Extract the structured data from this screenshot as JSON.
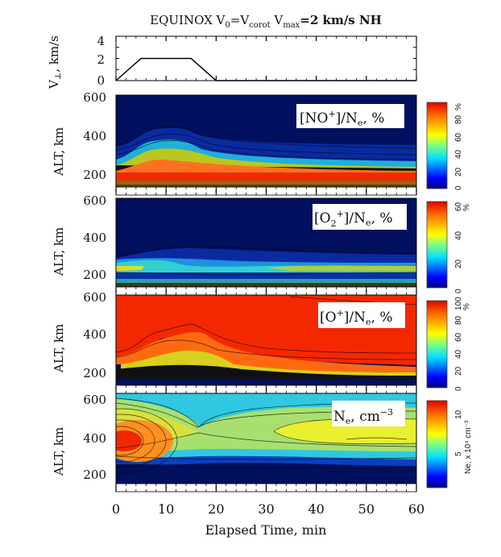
{
  "chart_data": [
    {
      "type": "line",
      "panel": "velocity",
      "title": "EQUINOX V0=Vcorot Vmax=2 km/s NH",
      "title_parts": {
        "main": "EQUINOX V",
        "sub0": "0",
        "eq1": "=V",
        "sub_corot": "corot",
        "v": " V",
        "sub_max": "max",
        "rest": "=2 km/s NH"
      },
      "ylabel": "V⊥, km/s",
      "ylim": [
        0,
        4
      ],
      "yticks": [
        0,
        2,
        4
      ],
      "ytick_labels": [
        "0",
        "2",
        "4"
      ],
      "xlim": [
        0,
        60
      ],
      "x": [
        0,
        5,
        15,
        20,
        60
      ],
      "values": [
        0,
        2,
        2,
        0,
        0
      ]
    },
    {
      "type": "heatmap",
      "panel": "NO+",
      "label": "[NO+]/Ne, %",
      "ylabel": "ALT, km",
      "ylim": [
        100,
        600
      ],
      "yticks": [
        200,
        400,
        600
      ],
      "colorbar": {
        "min": 0,
        "max": 100,
        "ticks": [
          0,
          20,
          40,
          60,
          80
        ],
        "unit": "%"
      },
      "description": "Near 0% above ~260 km; 80-100% layer below ~220 km; enhanced NO+ bulge up to ~300 km between 5 and 20 min"
    },
    {
      "type": "heatmap",
      "panel": "O2+",
      "label": "[O2+]/Ne, %",
      "ylabel": "ALT, km",
      "ylim": [
        100,
        600
      ],
      "yticks": [
        200,
        400,
        600
      ],
      "colorbar": {
        "min": 0,
        "max": 60,
        "ticks": [
          0,
          20,
          40,
          60
        ],
        "unit": "%"
      },
      "description": "Thin layer near 200-250 km peaking ~40-50% at start and after 40 min"
    },
    {
      "type": "heatmap",
      "panel": "O+",
      "label": "[O+]/Ne, %",
      "ylabel": "ALT, km",
      "ylim": [
        100,
        600
      ],
      "yticks": [
        200,
        400,
        600
      ],
      "colorbar": {
        "min": 0,
        "max": 100,
        "ticks": [
          0,
          20,
          40,
          60,
          80,
          100
        ],
        "unit": "%"
      },
      "description": "~100% above ~300 km; boundary rises to ~450 km near 15 min; near 0% below ~250 km"
    },
    {
      "type": "heatmap",
      "panel": "Ne",
      "label": "Ne, cm-3",
      "ylabel": "ALT, km",
      "ylim": [
        100,
        600
      ],
      "yticks": [
        200,
        400,
        600
      ],
      "colorbar": {
        "min": 0,
        "max": 12,
        "ticks": [
          5,
          10
        ],
        "unit": "Ne, x 10^4 cm^-3"
      },
      "description": "Peak ~12e4 at 380 km at t=0; saddle near 15 min at 430 km; second maximum ~8e4 near 400 km at 40-50 min"
    }
  ],
  "xaxis": {
    "label": "Elapsed Time, min",
    "ticks": [
      0,
      10,
      20,
      30,
      40,
      50,
      60
    ],
    "tick_labels": [
      "0",
      "10",
      "20",
      "30",
      "40",
      "50",
      "60"
    ]
  },
  "labels": {
    "no_label": "[NO",
    "no_sup": "+",
    "no_end": "]/N",
    "no_sub": "e",
    "no_pct": ", %",
    "o2_label": "[O",
    "o2_sub": "2",
    "o2_sup": "+",
    "o2_end": "]/N",
    "o2_sub_e": "e",
    "o2_pct": ", %",
    "o_label": "[O",
    "o_sup": "+",
    "o_end": "]/N",
    "o_sub": "e",
    "o_pct": ", %",
    "ne_label": "N",
    "ne_sub": "e",
    "ne_unit": ", cm",
    "ne_sup": "−3",
    "alt": "ALT, km",
    "vperp_v": "V",
    "vperp_sub": "⊥",
    "vperp_unit": ", km/s",
    "cb_pct": "%",
    "cb_ne_unit": "Ne, x 10⁴ cm⁻³"
  }
}
